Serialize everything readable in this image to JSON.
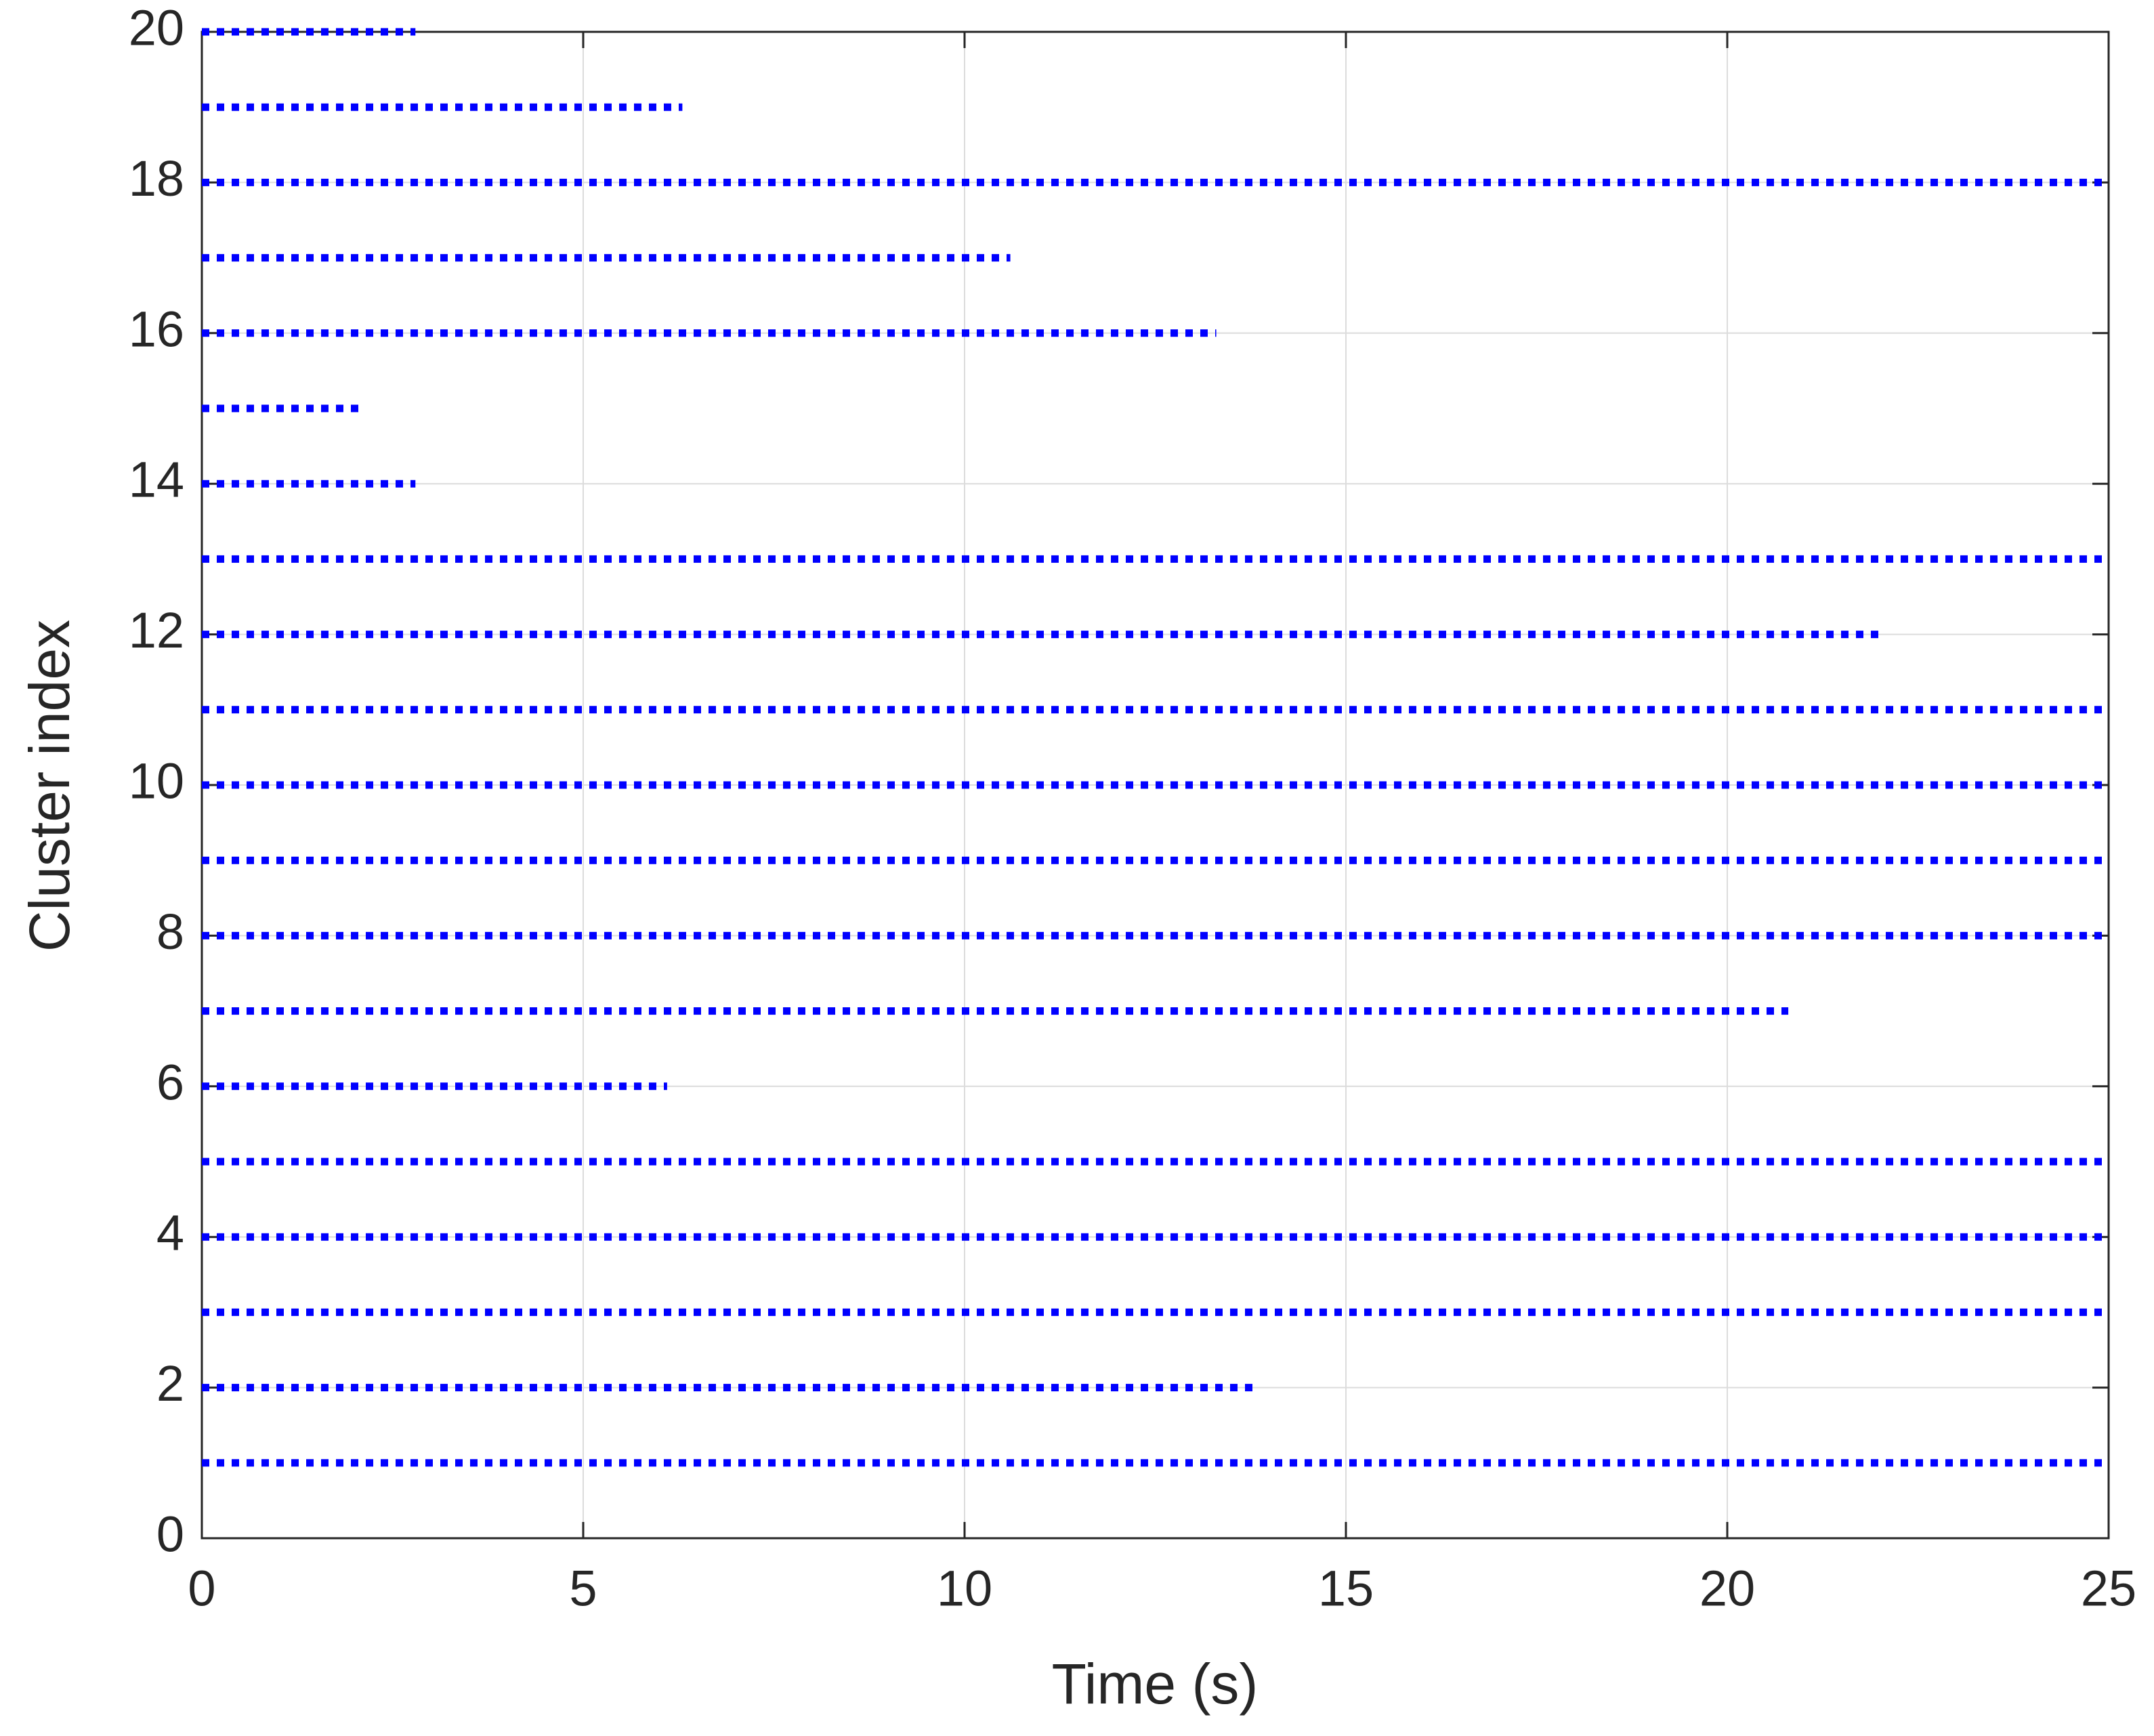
{
  "chart_data": {
    "type": "dotline",
    "xlabel": "Time (s)",
    "ylabel": "Cluster index",
    "clusters": [
      1,
      2,
      3,
      4,
      5,
      6,
      7,
      8,
      9,
      10,
      11,
      12,
      13,
      14,
      15,
      16,
      17,
      18,
      19,
      20
    ],
    "start_time": 0,
    "end_times": [
      25,
      13.8,
      25,
      25,
      25,
      6.1,
      20.8,
      25,
      25,
      25,
      25,
      22.0,
      25,
      2.8,
      2.1,
      13.3,
      10.6,
      25,
      6.3,
      2.8
    ],
    "color": "#0000ff",
    "xlim": [
      0,
      25
    ],
    "xticks": [
      0,
      5,
      10,
      15,
      20,
      25
    ],
    "ylim": [
      0,
      20
    ],
    "yticks": [
      0,
      2,
      4,
      6,
      8,
      10,
      12,
      14,
      16,
      18,
      20
    ],
    "grid": true
  }
}
